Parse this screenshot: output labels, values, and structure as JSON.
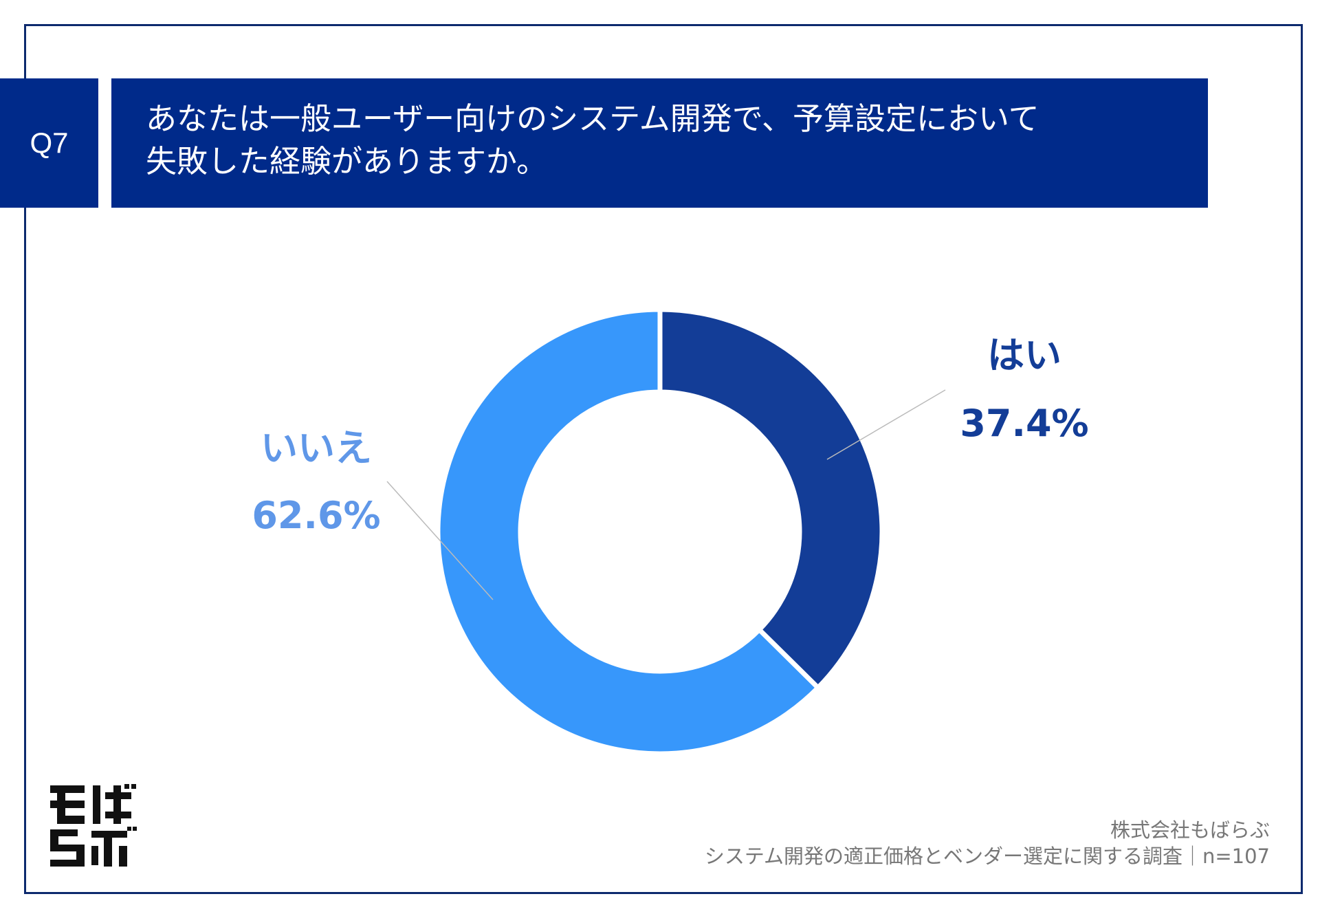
{
  "question": {
    "badge": "Q7",
    "line1": "あなたは一般ユーザー向けのシステム開発で、予算設定において",
    "line2": "失敗した経験がありますか。"
  },
  "chart_data": {
    "type": "pie",
    "style": "donut",
    "start": "12 o'clock, clockwise",
    "slices": [
      {
        "label": "はい",
        "value": 37.4,
        "value_label": "37.4%",
        "color": "#133d97"
      },
      {
        "label": "いいえ",
        "value": 62.6,
        "value_label": "62.6%",
        "color": "#3797fb"
      }
    ],
    "leader_line_color": "#bbbbbb"
  },
  "footer": {
    "company": "株式会社もばらぶ",
    "survey": "システム開発の適正価格とベンダー選定に関する調査｜n=107"
  },
  "logo": {
    "text": "もばらぶ",
    "color": "#111111"
  }
}
